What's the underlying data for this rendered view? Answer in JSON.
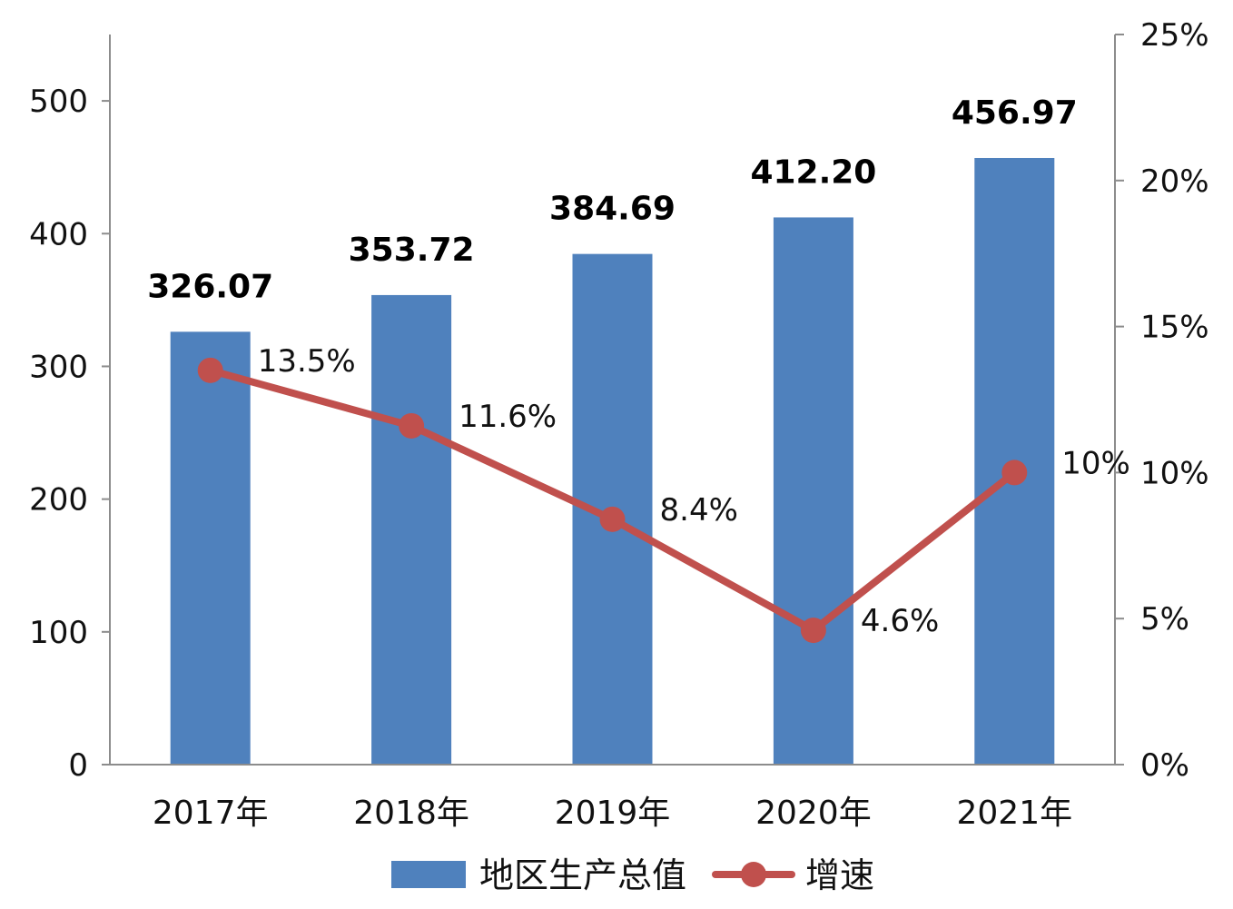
{
  "chart_data": {
    "type": "bar",
    "categories": [
      "2017年",
      "2018年",
      "2019年",
      "2020年",
      "2021年"
    ],
    "series": [
      {
        "name": "地区生产总值",
        "type": "bar",
        "axis": "left",
        "values": [
          326.07,
          353.72,
          384.69,
          412.2,
          456.97
        ],
        "value_labels": [
          "326.07",
          "353.72",
          "384.69",
          "412.20",
          "456.97"
        ],
        "color": "#4f81bd"
      },
      {
        "name": "增速",
        "type": "line",
        "axis": "right",
        "values": [
          13.5,
          11.6,
          8.4,
          4.6,
          10
        ],
        "value_labels": [
          "13.5%",
          "11.6%",
          "8.4%",
          "4.6%",
          "10%"
        ],
        "color": "#c0504d"
      }
    ],
    "y_left": {
      "ylim": [
        0,
        550
      ],
      "ticks": [
        0,
        100,
        200,
        300,
        400,
        500
      ],
      "tick_labels": [
        "0",
        "100",
        "200",
        "300",
        "400",
        "500"
      ]
    },
    "y_right": {
      "ylim": [
        0,
        25
      ],
      "ticks": [
        0,
        5,
        10,
        15,
        20,
        25
      ],
      "tick_labels": [
        "0%",
        "5%",
        "10%",
        "15%",
        "20%",
        "25%"
      ]
    },
    "title": "",
    "xlabel": "",
    "ylabel": "",
    "grid": false,
    "legend_position": "bottom",
    "legend": [
      {
        "label": "地区生产总值",
        "marker": "bar-swatch"
      },
      {
        "label": "增速",
        "marker": "line-with-dot"
      }
    ]
  }
}
